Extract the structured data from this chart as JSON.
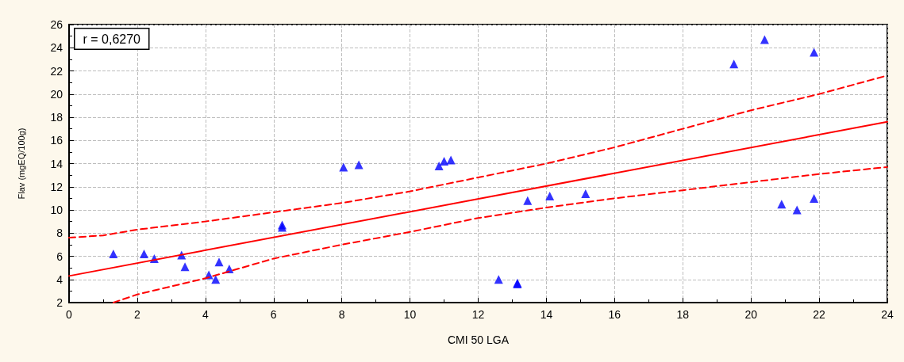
{
  "chart_data": {
    "type": "scatter",
    "xlabel": "CMI 50 LGA",
    "ylabel": "Flav (mgEQ/100g)",
    "annotations": [
      "r = 0,6270"
    ],
    "xlim": [
      0,
      24
    ],
    "xticks": [
      0,
      2,
      4,
      6,
      8,
      10,
      12,
      14,
      16,
      18,
      20,
      22,
      24
    ],
    "ylim": [
      2,
      26
    ],
    "yticks": [
      2,
      4,
      6,
      8,
      10,
      12,
      14,
      16,
      18,
      20,
      22,
      24,
      26
    ],
    "grid": true,
    "marker": "triangle",
    "series": [
      {
        "color": "#0000ff",
        "x": [
          1.3,
          2.2,
          2.5,
          3.3,
          3.4,
          4.1,
          4.3,
          4.4,
          4.7,
          6.25,
          6.25,
          8.05,
          8.5,
          10.85,
          11.0,
          11.2,
          12.6,
          13.15,
          13.15,
          13.45,
          14.1,
          15.15,
          19.5,
          20.4,
          20.9,
          21.35,
          21.85,
          21.85
        ],
        "values": [
          6.2,
          6.2,
          5.8,
          6.1,
          5.1,
          4.4,
          4.0,
          5.5,
          4.9,
          8.7,
          8.5,
          13.7,
          13.9,
          13.8,
          14.2,
          14.3,
          4.0,
          3.7,
          3.6,
          10.8,
          11.2,
          11.4,
          22.6,
          24.7,
          10.5,
          10.0,
          23.6,
          11.0
        ]
      },
      {
        "type": "line",
        "color": "#ff0000",
        "line_style": "solid",
        "marker": "none",
        "x": [
          0,
          24
        ],
        "values": [
          4.3,
          17.6
        ]
      },
      {
        "type": "line",
        "color": "#ff0000",
        "line_style": "dashed",
        "marker": "none",
        "x": [
          0,
          1,
          2,
          4,
          6,
          8,
          10,
          12,
          14,
          16,
          18,
          20,
          22,
          24
        ],
        "values": [
          7.6,
          7.8,
          8.3,
          9.0,
          9.8,
          10.6,
          11.6,
          12.8,
          14.0,
          15.4,
          17.0,
          18.6,
          20.0,
          21.6
        ]
      },
      {
        "type": "line",
        "color": "#ff0000",
        "line_style": "dashed",
        "marker": "none",
        "x": [
          1.3,
          2,
          3,
          4,
          6,
          8,
          10,
          12,
          14,
          16,
          18,
          20,
          22,
          24
        ],
        "values": [
          2.0,
          2.7,
          3.4,
          4.1,
          5.8,
          7.0,
          8.1,
          9.3,
          10.2,
          11.0,
          11.7,
          12.4,
          13.1,
          13.7
        ]
      }
    ]
  }
}
